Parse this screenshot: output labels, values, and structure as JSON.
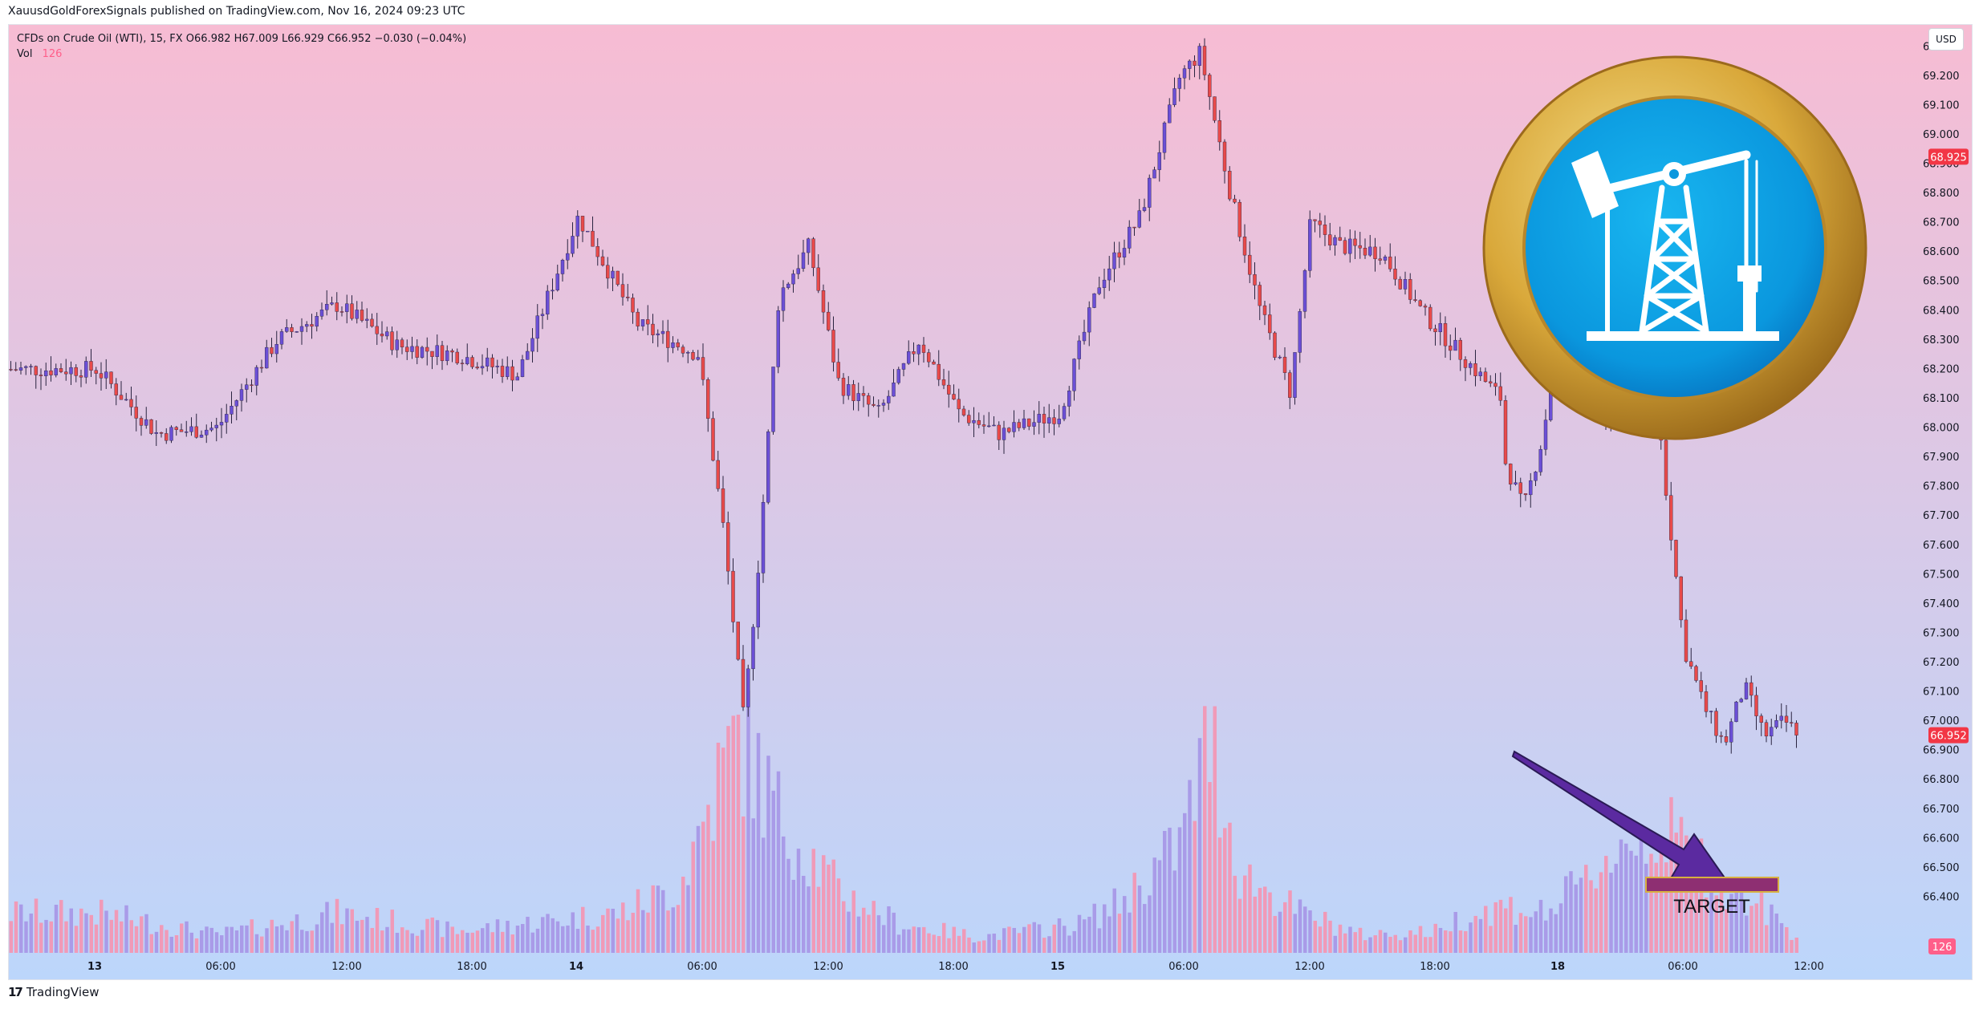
{
  "header": {
    "published_by": "XauusdGoldForexSignals published on TradingView.com, Nov 16, 2024 09:23 UTC"
  },
  "legend": {
    "symbol_line": "CFDs on Crude Oil (WTI), 15, FX  O66.982  H67.009  L66.929  C66.952  −0.030 (−0.04%)",
    "vol_label": "Vol",
    "vol_value": "126"
  },
  "currency_button": "USD",
  "footer": {
    "brand": "TradingView"
  },
  "annotation": {
    "target_label": "TARGET"
  },
  "colors": {
    "bg_top": "#f7bcd3",
    "bg_bottom": "#bcd6fb",
    "up_candle": "#6b4fd6",
    "down_candle": "#e84a4a",
    "wick": "#2a2440",
    "vol_up": "#a99be8",
    "vol_down": "#f09ab8",
    "price_tag": "#f23645",
    "arrow": "#5b2aa0",
    "target_box": "#8e2f72",
    "target_border": "#d8b040"
  },
  "chart_data": {
    "type": "candlestick",
    "symbol": "CFDs on Crude Oil (WTI)",
    "interval": "15",
    "ohlc_last": {
      "open": 66.982,
      "high": 67.009,
      "low": 66.929,
      "close": 66.952,
      "change": -0.03,
      "change_pct": -0.04
    },
    "y_ticks": [
      "66.400",
      "66.500",
      "66.600",
      "66.700",
      "66.800",
      "66.900",
      "67.000",
      "67.100",
      "67.200",
      "67.300",
      "67.400",
      "67.500",
      "67.600",
      "67.700",
      "67.800",
      "67.900",
      "68.000",
      "68.100",
      "68.200",
      "68.300",
      "68.400",
      "68.500",
      "68.600",
      "68.700",
      "68.800",
      "68.900",
      "69.000",
      "69.100",
      "69.200",
      "69.300"
    ],
    "ylim": [
      66.3,
      69.35
    ],
    "x_ticks": [
      "13",
      "06:00",
      "12:00",
      "18:00",
      "14",
      "06:00",
      "12:00",
      "18:00",
      "15",
      "06:00",
      "12:00",
      "18:00",
      "18",
      "06:00",
      "12:00"
    ],
    "price_labels": [
      {
        "value": 68.925,
        "label": "68.925"
      },
      {
        "value": 66.952,
        "label": "66.952"
      }
    ],
    "volume_label": "126",
    "price_path": [
      {
        "date": "Nov 13 00:00",
        "price": 68.2
      },
      {
        "date": "Nov 13 03:00",
        "price": 67.98
      },
      {
        "date": "Nov 13 06:00",
        "price": 68.0
      },
      {
        "date": "Nov 13 09:00",
        "price": 68.3
      },
      {
        "date": "Nov 13 12:00",
        "price": 68.42
      },
      {
        "date": "Nov 13 15:00",
        "price": 68.28
      },
      {
        "date": "Nov 13 18:00",
        "price": 68.25
      },
      {
        "date": "Nov 13 21:00",
        "price": 68.18
      },
      {
        "date": "Nov 14 00:00",
        "price": 68.72
      },
      {
        "date": "Nov 14 03:00",
        "price": 68.35
      },
      {
        "date": "Nov 14 06:00",
        "price": 68.25
      },
      {
        "date": "Nov 14 07:15",
        "price": 67.65
      },
      {
        "date": "Nov 14 08:15",
        "price": 67.0
      },
      {
        "date": "Nov 14 09:00",
        "price": 67.55
      },
      {
        "date": "Nov 14 10:00",
        "price": 68.45
      },
      {
        "date": "Nov 14 11:30",
        "price": 68.62
      },
      {
        "date": "Nov 14 13:00",
        "price": 68.15
      },
      {
        "date": "Nov 14 15:00",
        "price": 68.05
      },
      {
        "date": "Nov 14 17:00",
        "price": 68.3
      },
      {
        "date": "Nov 14 19:00",
        "price": 68.05
      },
      {
        "date": "Nov 14 21:00",
        "price": 67.98
      },
      {
        "date": "Nov 15 00:00",
        "price": 68.05
      },
      {
        "date": "Nov 15 02:00",
        "price": 68.5
      },
      {
        "date": "Nov 15 04:00",
        "price": 68.72
      },
      {
        "date": "Nov 15 06:00",
        "price": 69.2
      },
      {
        "date": "Nov 15 07:00",
        "price": 69.28
      },
      {
        "date": "Nov 15 08:30",
        "price": 68.8
      },
      {
        "date": "Nov 15 10:00",
        "price": 68.4
      },
      {
        "date": "Nov 15 11:30",
        "price": 68.12
      },
      {
        "date": "Nov 15 12:30",
        "price": 68.7
      },
      {
        "date": "Nov 15 14:00",
        "price": 68.62
      },
      {
        "date": "Nov 15 16:00",
        "price": 68.6
      },
      {
        "date": "Nov 15 18:00",
        "price": 68.4
      },
      {
        "date": "Nov 15 20:00",
        "price": 68.25
      },
      {
        "date": "Nov 15 22:00",
        "price": 68.1
      },
      {
        "date": "Nov 16 00:00",
        "price": 67.9
      },
      {
        "date": "Nov 16 01:30",
        "price": 67.55
      },
      {
        "date": "Nov 16 03:00",
        "price": 67.9
      },
      {
        "date": "Nov 16 04:00",
        "price": 67.72
      },
      {
        "date": "Nov 16 05:00",
        "price": 67.98
      },
      {
        "date": "Nov 16 06:00",
        "price": 68.5
      },
      {
        "date": "Nov 16 07:00",
        "price": 68.62
      },
      {
        "date": "Nov 16 08:00",
        "price": 68.0
      },
      {
        "date": "Nov 16 09:00",
        "price": 68.12
      },
      {
        "date": "Nov 16 10:00",
        "price": 68.55
      },
      {
        "date": "Nov 16 11:00",
        "price": 67.85
      },
      {
        "date": "Nov 16 12:00",
        "price": 67.25
      },
      {
        "date": "Nov 16 13:00",
        "price": 67.05
      },
      {
        "date": "Nov 16 14:00",
        "price": 66.92
      },
      {
        "date": "Nov 16 15:00",
        "price": 67.12
      },
      {
        "date": "Nov 16 16:00",
        "price": 66.95
      },
      {
        "date": "Nov 16 17:00",
        "price": 67.0
      },
      {
        "date": "Nov 16 17:45",
        "price": 66.952
      }
    ],
    "volume_profile": [
      {
        "date": "Nov 13 00:00",
        "volume": 55
      },
      {
        "date": "Nov 13 06:00",
        "volume": 25
      },
      {
        "date": "Nov 13 12:00",
        "volume": 55
      },
      {
        "date": "Nov 13 18:00",
        "volume": 30
      },
      {
        "date": "Nov 14 02:00",
        "volume": 55
      },
      {
        "date": "Nov 14 05:00",
        "volume": 90
      },
      {
        "date": "Nov 14 07:00",
        "volume": 240
      },
      {
        "date": "Nov 14 08:00",
        "volume": 300
      },
      {
        "date": "Nov 14 10:00",
        "volume": 190
      },
      {
        "date": "Nov 14 13:00",
        "volume": 85
      },
      {
        "date": "Nov 14 16:00",
        "volume": 40
      },
      {
        "date": "Nov 14 20:00",
        "volume": 22
      },
      {
        "date": "Nov 15 01:00",
        "volume": 40
      },
      {
        "date": "Nov 15 03:00",
        "volume": 70
      },
      {
        "date": "Nov 15 06:00",
        "volume": 150
      },
      {
        "date": "Nov 15 07:30",
        "volume": 300
      },
      {
        "date": "Nov 15 09:00",
        "volume": 110
      },
      {
        "date": "Nov 15 12:00",
        "volume": 55
      },
      {
        "date": "Nov 15 15:00",
        "volume": 25
      },
      {
        "date": "Nov 15 19:00",
        "volume": 30
      },
      {
        "date": "Nov 16 00:00",
        "volume": 40
      },
      {
        "date": "Nov 16 03:00",
        "volume": 65
      },
      {
        "date": "Nov 16 05:00",
        "volume": 55
      },
      {
        "date": "Nov 16 07:00",
        "volume": 95
      },
      {
        "date": "Nov 16 08:00",
        "volume": 130
      },
      {
        "date": "Nov 16 10:00",
        "volume": 170
      },
      {
        "date": "Nov 16 12:00",
        "volume": 150
      },
      {
        "date": "Nov 16 14:00",
        "volume": 100
      },
      {
        "date": "Nov 16 16:00",
        "volume": 60
      },
      {
        "date": "Nov 16 17:45",
        "volume": 20
      }
    ]
  }
}
